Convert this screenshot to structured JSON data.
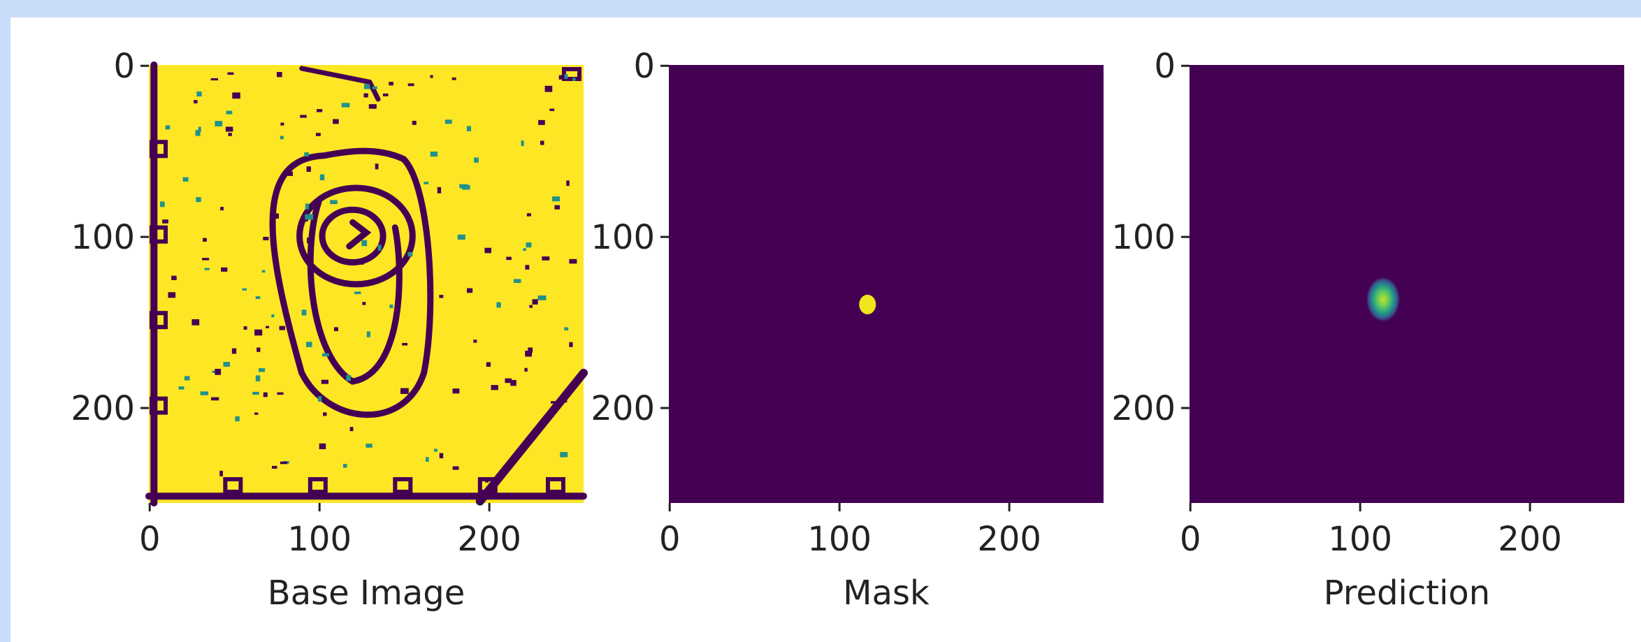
{
  "chart_data": [
    {
      "type": "image",
      "xlabel": "Base Image",
      "xlim": [
        -0.5,
        255.5
      ],
      "ylim": [
        255.5,
        -0.5
      ],
      "xticks": [
        0,
        100,
        200
      ],
      "yticks": [
        0,
        100,
        200
      ]
    },
    {
      "type": "image",
      "xlabel": "Mask",
      "xlim": [
        -0.5,
        255.5
      ],
      "ylim": [
        255.5,
        -0.5
      ],
      "xticks": [
        0,
        100,
        200
      ],
      "yticks": [
        0,
        100,
        200
      ]
    },
    {
      "type": "image",
      "xlabel": "Prediction",
      "xlim": [
        -0.5,
        255.5
      ],
      "ylim": [
        255.5,
        -0.5
      ],
      "xticks": [
        0,
        100,
        200
      ],
      "yticks": [
        0,
        100,
        200
      ]
    }
  ]
}
